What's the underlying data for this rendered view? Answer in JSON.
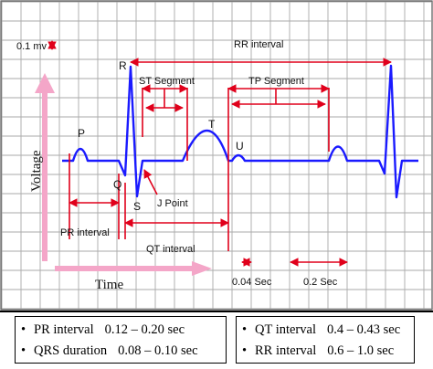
{
  "labels": {
    "scale_mv": "0.1 mv",
    "rr_interval": "RR interval",
    "st_segment": "ST Segment",
    "tp_segment": "TP Segment",
    "pr_interval": "PR interval",
    "qt_interval": "QT interval",
    "j_point": "J Point",
    "sec_004": "0.04 Sec",
    "sec_02": "0.2 Sec",
    "voltage": "Voltage",
    "time": "Time"
  },
  "waves": {
    "p": "P",
    "q": "Q",
    "r": "R",
    "s": "S",
    "t": "T",
    "u": "U"
  },
  "legend": {
    "bullet": "•",
    "rows": [
      {
        "name": "PR interval",
        "value": "0.12 – 0.20 sec"
      },
      {
        "name": "QRS duration",
        "value": "0.08 – 0.10 sec"
      },
      {
        "name": "QT interval",
        "value": "0.4 – 0.43 sec"
      },
      {
        "name": "RR interval",
        "value": "0.6 – 1.0  sec"
      }
    ]
  },
  "colors": {
    "ecg_trace": "#1a1aff",
    "interval_markers": "#e0001b",
    "grid": "#aaaaaa",
    "axis_arrow": "#f4a6c8"
  }
}
